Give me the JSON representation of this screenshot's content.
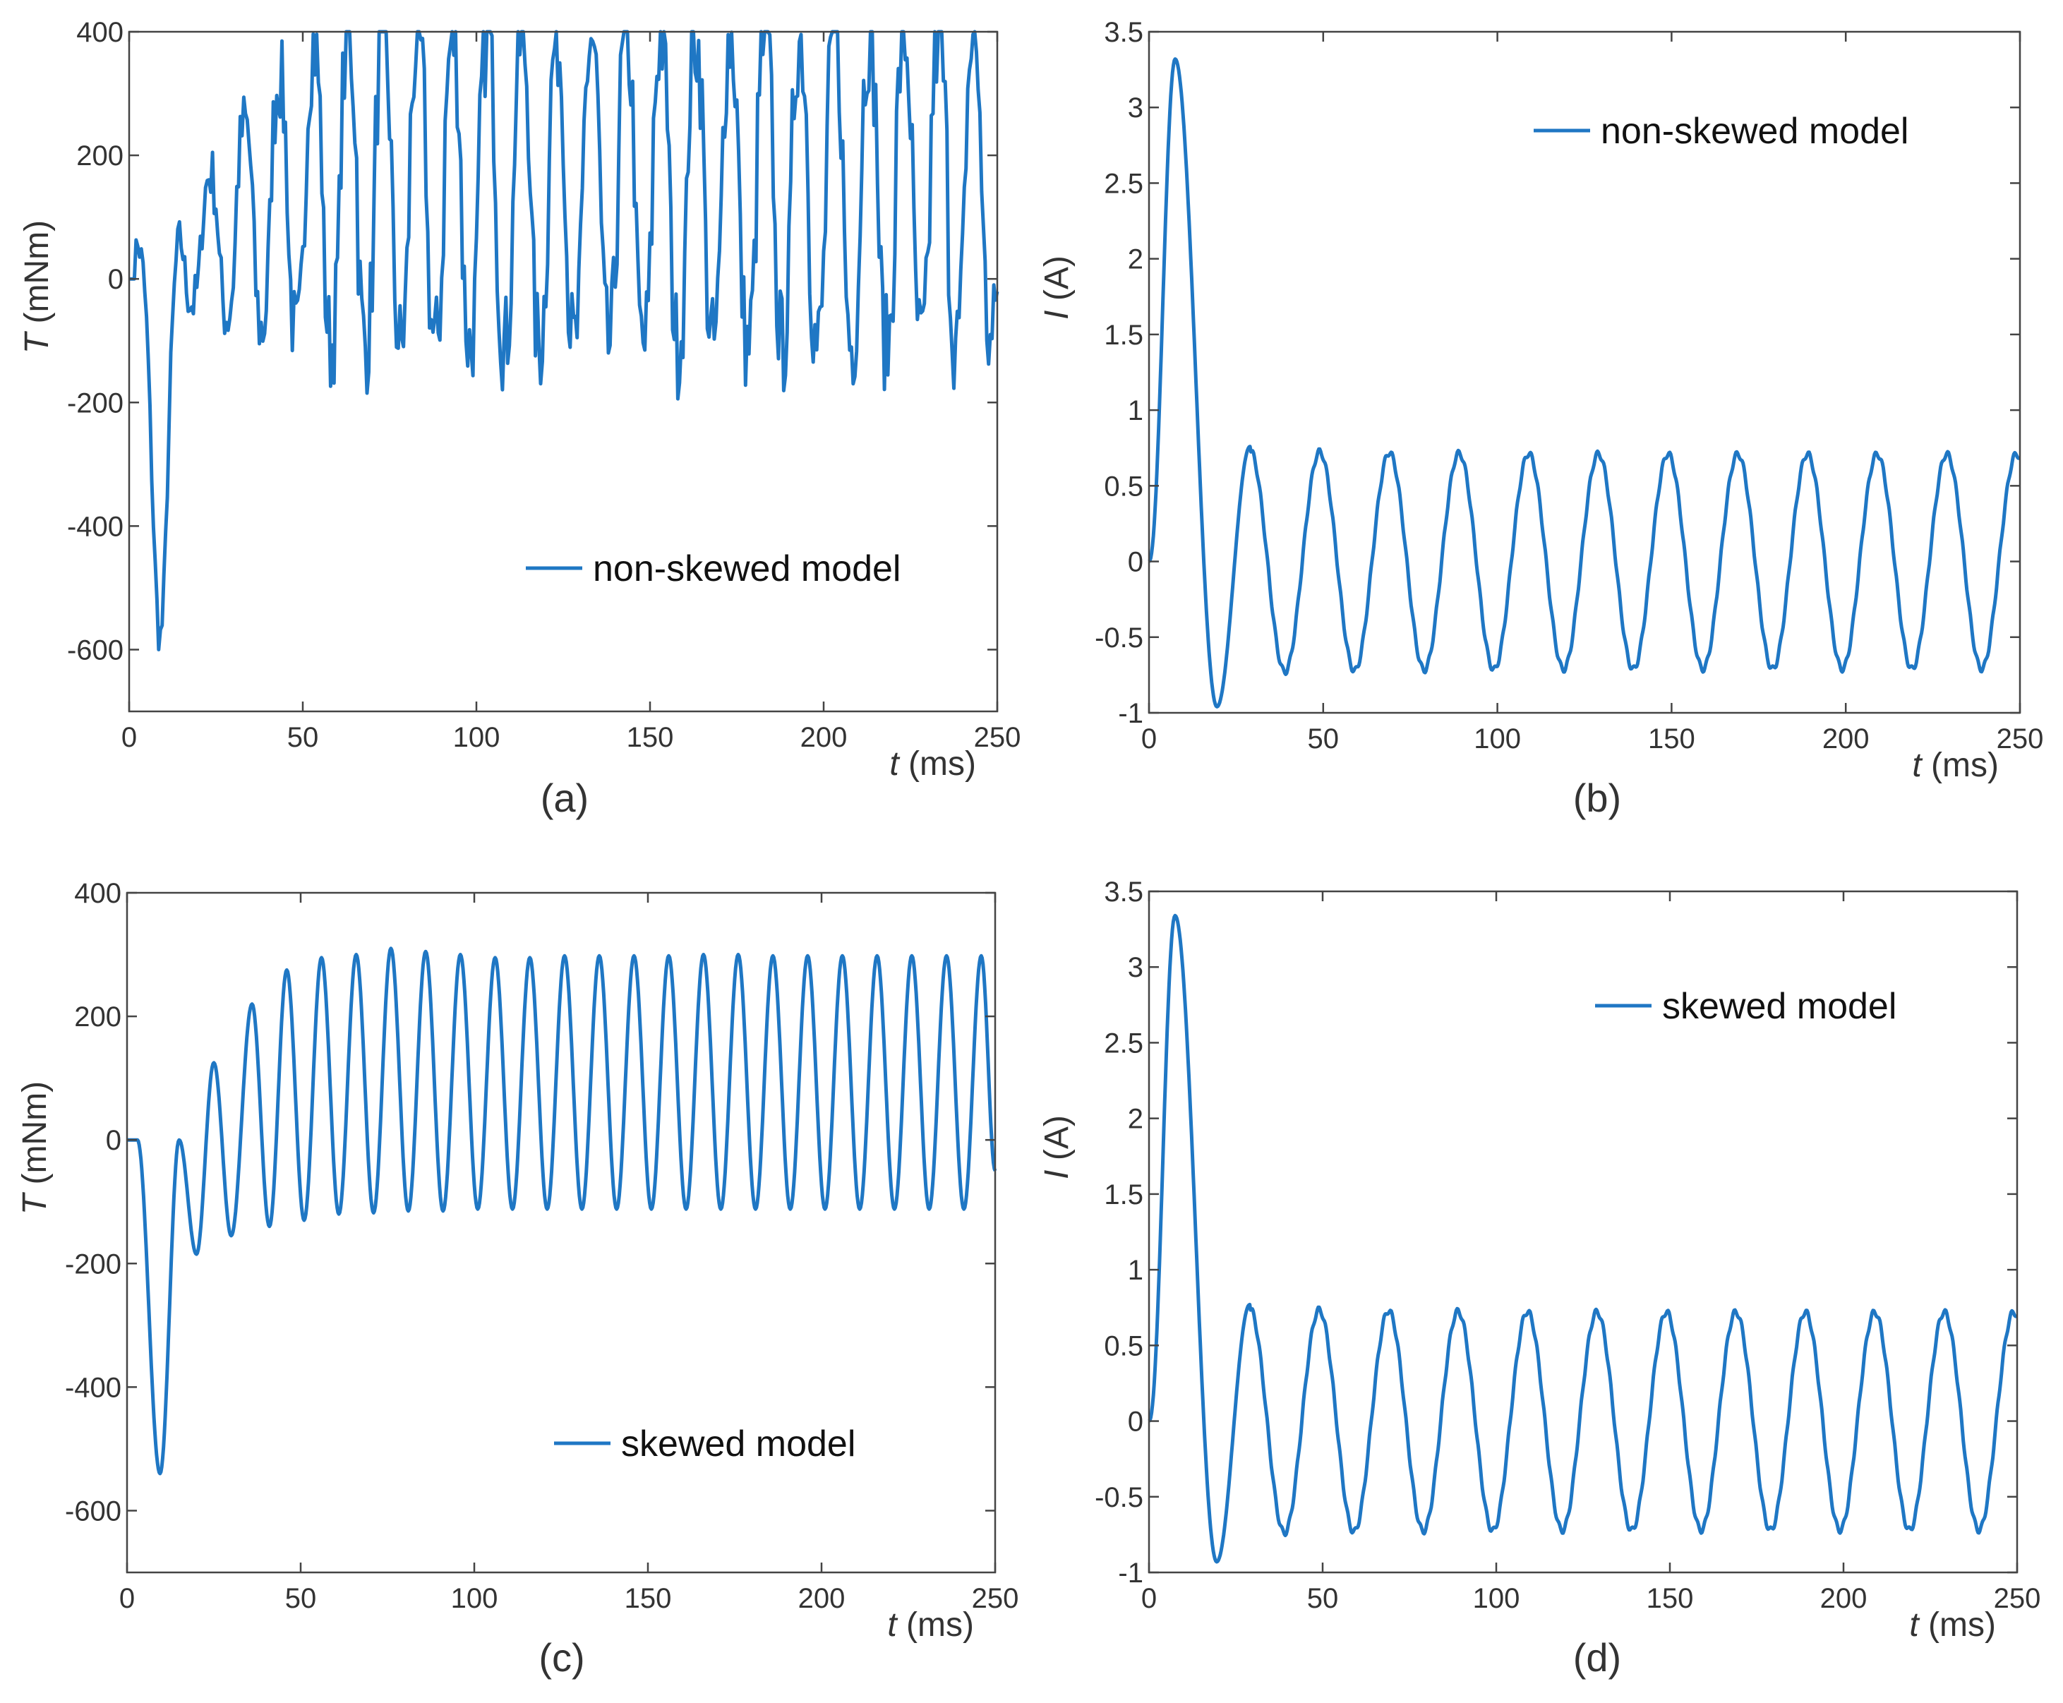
{
  "chart_data": [
    {
      "id": "a",
      "type": "line",
      "caption": "(a)",
      "xlabel_var": "t",
      "xlabel_unit": " (ms)",
      "ylabel_var": "T",
      "ylabel_unit": " (mNm)",
      "xlim": [
        0,
        250
      ],
      "ylim": [
        -700,
        400
      ],
      "xticks": [
        "0",
        "50",
        "100",
        "150",
        "200",
        "250"
      ],
      "yticks": [
        "400",
        "200",
        "0",
        "-200",
        "-400",
        "-600"
      ],
      "xtick_values": [
        0,
        50,
        100,
        150,
        200,
        250
      ],
      "ytick_values": [
        400,
        200,
        0,
        -200,
        -400,
        -600
      ],
      "legend": "non-skewed model",
      "series": [
        {
          "name": "non-skewed model",
          "x": [
            0,
            2,
            4,
            6,
            8,
            10,
            12,
            14,
            16,
            18,
            20,
            23,
            26,
            29,
            32,
            35,
            38,
            41,
            44,
            47,
            50,
            60,
            80,
            100,
            120,
            150,
            200,
            250
          ],
          "y": [
            0,
            30,
            -100,
            -400,
            -550,
            -660,
            -420,
            -250,
            70,
            -260,
            150,
            -220,
            240,
            -160,
            310,
            -120,
            330,
            -120,
            350,
            -150,
            360,
            370,
            380,
            390,
            380,
            390,
            380,
            360
          ],
          "note": "oscillating torque with period approx 10 ms; envelope given by key peaks"
        }
      ],
      "color": "#1f77c4"
    },
    {
      "id": "b",
      "type": "line",
      "caption": "(b)",
      "xlabel_var": "t",
      "xlabel_unit": " (ms)",
      "ylabel_var": "I",
      "ylabel_unit": " (A)",
      "xlim": [
        0,
        250
      ],
      "ylim": [
        -1,
        3.5
      ],
      "xticks": [
        "0",
        "50",
        "100",
        "150",
        "200",
        "250"
      ],
      "yticks": [
        "3.5",
        "3",
        "2.5",
        "2",
        "1.5",
        "1",
        "0.5",
        "0",
        "-0.5",
        "-1"
      ],
      "xtick_values": [
        0,
        50,
        100,
        150,
        200,
        250
      ],
      "ytick_values": [
        3.5,
        3,
        2.5,
        2,
        1.5,
        1,
        0.5,
        0,
        -0.5,
        -1
      ],
      "legend": "non-skewed model",
      "series": [
        {
          "name": "non-skewed model",
          "peak": {
            "t": 7.5,
            "I": 3.32
          },
          "trough": {
            "t": 19.5,
            "I": -0.96
          },
          "first_peak": {
            "t": 29,
            "I": 0.76
          },
          "steady_amplitude": 0.71,
          "period_ms": 20
        }
      ],
      "color": "#1f77c4"
    },
    {
      "id": "c",
      "type": "line",
      "caption": "(c)",
      "xlabel_var": "t",
      "xlabel_unit": " (ms)",
      "ylabel_var": "T",
      "ylabel_unit": " (mNm)",
      "xlim": [
        0,
        250
      ],
      "ylim": [
        -700,
        400
      ],
      "xticks": [
        "0",
        "50",
        "100",
        "150",
        "200",
        "250"
      ],
      "yticks": [
        "400",
        "200",
        "0",
        "-200",
        "-400",
        "-600"
      ],
      "xtick_values": [
        0,
        50,
        100,
        150,
        200,
        250
      ],
      "ytick_values": [
        400,
        200,
        0,
        -200,
        -400,
        -600
      ],
      "legend": "skewed model",
      "series": [
        {
          "name": "skewed model",
          "min": {
            "t": 9.5,
            "T": -540
          },
          "peaks": [
            [
              15,
              0
            ],
            [
              25,
              125
            ],
            [
              36,
              220
            ],
            [
              46,
              275
            ],
            [
              56,
              295
            ],
            [
              66,
              300
            ],
            [
              76,
              310
            ],
            [
              86,
              305
            ],
            [
              96,
              300
            ],
            [
              106,
              295
            ],
            [
              116,
              295
            ],
            [
              126,
              298
            ],
            [
              136,
              298
            ],
            [
              146,
              298
            ],
            [
              156,
              298
            ],
            [
              166,
              300
            ],
            [
              176,
              300
            ],
            [
              186,
              298
            ],
            [
              196,
              298
            ],
            [
              206,
              298
            ],
            [
              216,
              298
            ],
            [
              226,
              298
            ],
            [
              236,
              298
            ],
            [
              246,
              298
            ]
          ],
          "troughs": [
            [
              20,
              -185
            ],
            [
              30,
              -155
            ],
            [
              41,
              -140
            ],
            [
              51,
              -130
            ],
            [
              61,
              -120
            ],
            [
              71,
              -118
            ],
            [
              81,
              -115
            ],
            [
              91,
              -115
            ],
            [
              101,
              -112
            ],
            [
              111,
              -112
            ],
            [
              121,
              -112
            ],
            [
              131,
              -112
            ],
            [
              141,
              -112
            ],
            [
              151,
              -112
            ],
            [
              161,
              -112
            ],
            [
              171,
              -112
            ],
            [
              181,
              -112
            ],
            [
              191,
              -112
            ],
            [
              201,
              -112
            ],
            [
              211,
              -112
            ],
            [
              221,
              -112
            ],
            [
              231,
              -112
            ],
            [
              241,
              -112
            ]
          ],
          "end": {
            "t": 250,
            "T": -50
          }
        }
      ],
      "color": "#1f77c4"
    },
    {
      "id": "d",
      "type": "line",
      "caption": "(d)",
      "xlabel_var": "t",
      "xlabel_unit": " (ms)",
      "ylabel_var": "I",
      "ylabel_unit": " (A)",
      "xlim": [
        0,
        250
      ],
      "ylim": [
        -1,
        3.5
      ],
      "xticks": [
        "0",
        "50",
        "100",
        "150",
        "200",
        "250"
      ],
      "yticks": [
        "3.5",
        "3",
        "2.5",
        "2",
        "1.5",
        "1",
        "0.5",
        "0",
        "-0.5",
        "-1"
      ],
      "xtick_values": [
        0,
        50,
        100,
        150,
        200,
        250
      ],
      "ytick_values": [
        3.5,
        3,
        2.5,
        2,
        1.5,
        1,
        0.5,
        0,
        -0.5,
        -1
      ],
      "legend": "skewed model",
      "series": [
        {
          "name": "skewed model",
          "peak": {
            "t": 7.5,
            "I": 3.34
          },
          "trough": {
            "t": 19.5,
            "I": -0.93
          },
          "first_peak": {
            "t": 29,
            "I": 0.77
          },
          "steady_amplitude": 0.72,
          "period_ms": 20
        }
      ],
      "color": "#1f77c4"
    }
  ]
}
